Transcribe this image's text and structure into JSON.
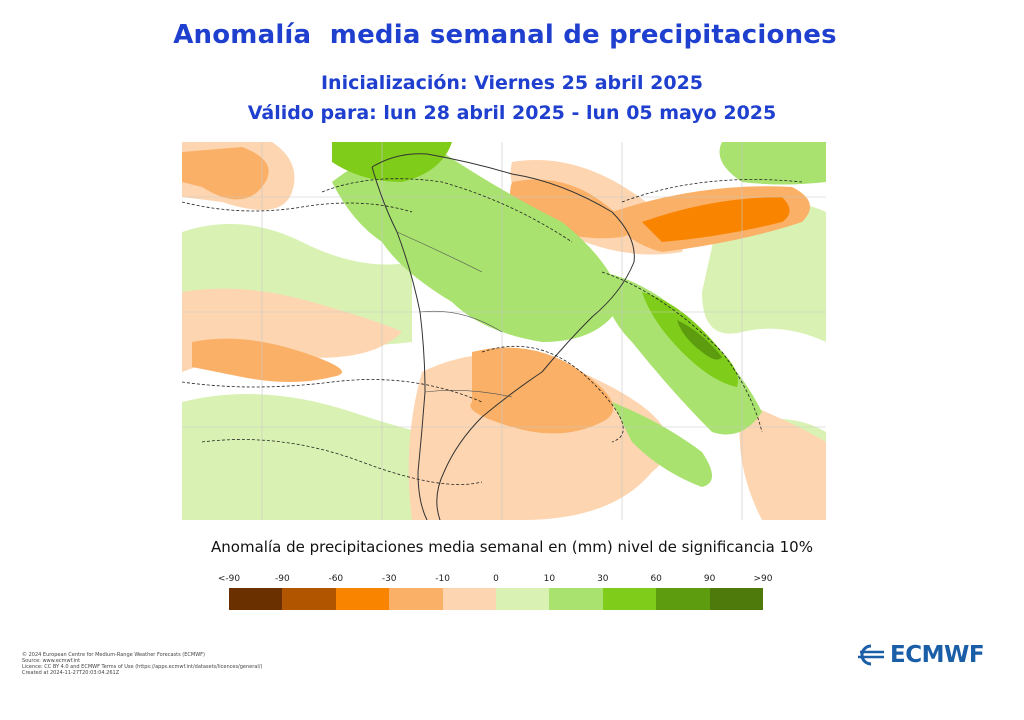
{
  "title": "Anomalía  media semanal de precipitaciones",
  "subtitle_init": "Inicialización: Viernes 25 abril 2025",
  "subtitle_valid": "Válido para: lun 28 abril 2025 - lun 05 mayo 2025",
  "caption": "Anomalía de precipitaciones media semanal en (mm) nivel de significancia 10%",
  "legend": {
    "ticks": [
      "<-90",
      "-90",
      "-60",
      "-30",
      "-10",
      "0",
      "10",
      "30",
      "60",
      "90",
      ">90"
    ],
    "colors": [
      "#6b3000",
      "#b25500",
      "#f98400",
      "#fbb067",
      "#fdd5b0",
      "#d9f2b3",
      "#a9e26e",
      "#80cc1a",
      "#5c9c0e",
      "#4d7a0a"
    ]
  },
  "footer_lines": [
    "© 2024 European Centre for Medium-Range Weather Forecasts (ECMWF)",
    "Source: www.ecmwf.int",
    "Licence: CC BY 4.0 and ECMWF Terms of Use (https://apps.ecmwf.int/datasets/licences/general/)",
    "Created at 2024-11-27T20:03:04.261Z"
  ],
  "logo_text": "ECMWF"
}
